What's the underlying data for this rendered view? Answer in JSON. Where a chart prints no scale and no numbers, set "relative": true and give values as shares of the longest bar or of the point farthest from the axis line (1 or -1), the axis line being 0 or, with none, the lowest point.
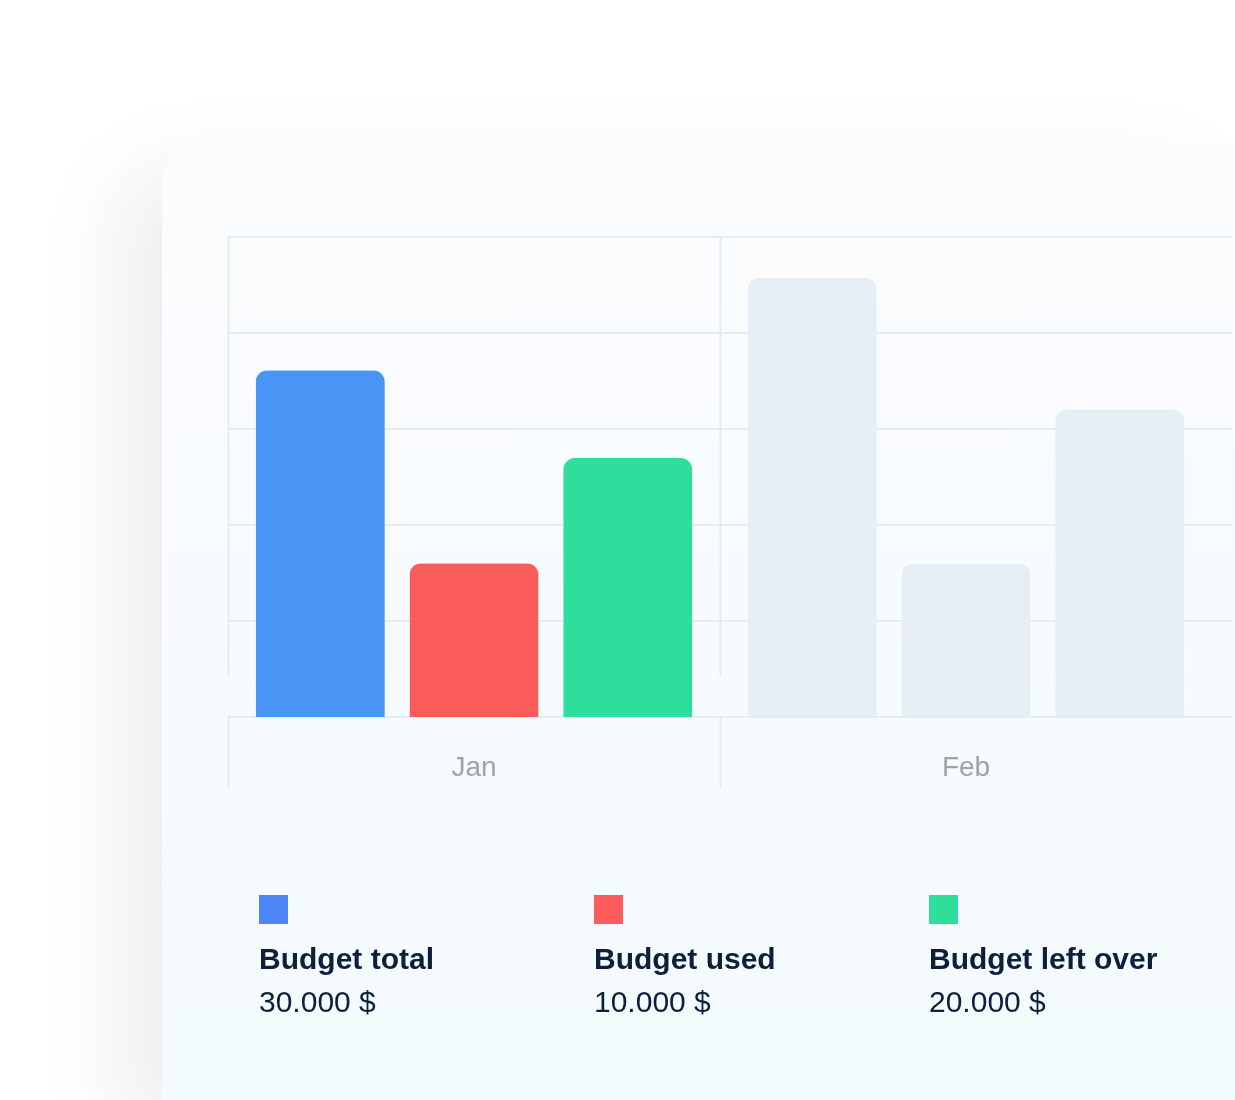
{
  "chart_data": {
    "type": "bar",
    "categories": [
      "Jan",
      "Feb"
    ],
    "relative": true,
    "series": [
      {
        "name": "Budget total",
        "color": "#4f86f7",
        "colors": [
          "#4895f5",
          "#e6eef6"
        ],
        "values": [
          0.79,
          1
        ]
      },
      {
        "name": "Budget used",
        "color": "#fc5c5c",
        "colors": [
          "#fa5c5c",
          "#e6eef6"
        ],
        "values": [
          0.35,
          0.35
        ]
      },
      {
        "name": "Budget left over",
        "color": "#2ede9a",
        "colors": [
          "#2fdd9c",
          "#e6eef6"
        ],
        "values": [
          0.59,
          0.7
        ]
      }
    ],
    "annotations": [
      "30.000 $",
      "10.000 $",
      "20.000 $"
    ],
    "grid": true,
    "legend": "bottom"
  }
}
